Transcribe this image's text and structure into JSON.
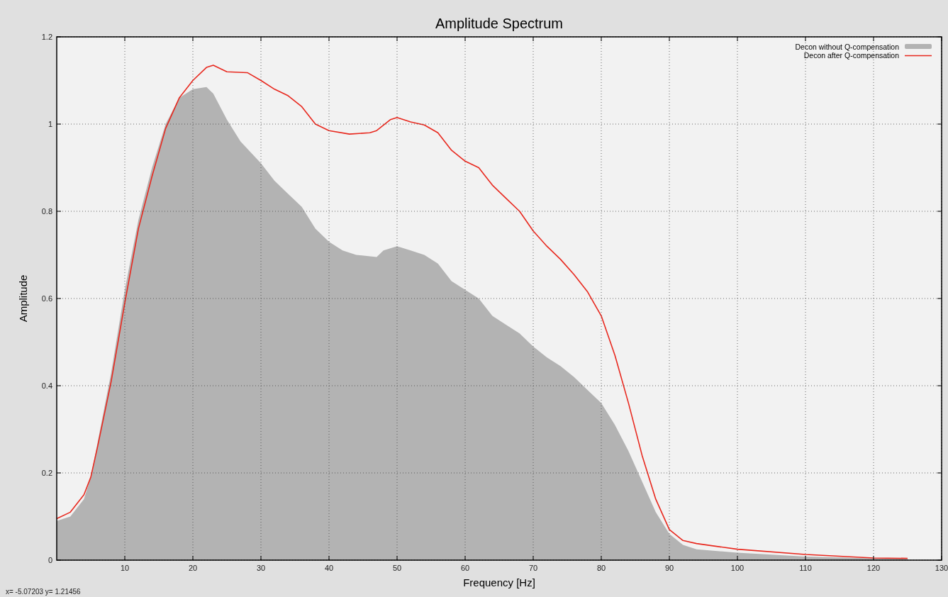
{
  "chart_data": {
    "type": "line",
    "title": "Amplitude Spectrum",
    "xlabel": "Frequency [Hz]",
    "ylabel": "Amplitude",
    "xlim": [
      0,
      130
    ],
    "xticks": [
      10,
      20,
      30,
      40,
      50,
      60,
      70,
      80,
      90,
      100,
      110,
      120,
      130
    ],
    "ylim": [
      0,
      1.2
    ],
    "yticks": [
      0,
      0.2,
      0.4,
      0.6,
      0.8,
      1,
      1.2
    ],
    "grid": true,
    "legend": "top right",
    "annotations": [
      "x= -5.07203 y= 1.21456"
    ],
    "series": [
      {
        "name": "Decon without Q-compensation",
        "type": "area",
        "color": "#b3b3b3",
        "x": [
          0,
          2,
          4,
          5,
          6,
          8,
          10,
          12,
          14,
          16,
          18,
          20,
          22,
          23,
          25,
          27,
          30,
          32,
          34,
          36,
          38,
          40,
          42,
          44,
          47,
          48,
          50,
          52,
          54,
          56,
          58,
          60,
          62,
          64,
          66,
          68,
          70,
          72,
          74,
          76,
          78,
          80,
          82,
          84,
          86,
          88,
          90,
          92,
          94,
          100,
          110,
          120,
          125
        ],
        "values": [
          0.09,
          0.1,
          0.14,
          0.19,
          0.27,
          0.43,
          0.62,
          0.78,
          0.9,
          1.0,
          1.06,
          1.08,
          1.085,
          1.07,
          1.01,
          0.96,
          0.91,
          0.87,
          0.84,
          0.81,
          0.76,
          0.73,
          0.71,
          0.7,
          0.695,
          0.71,
          0.72,
          0.71,
          0.7,
          0.68,
          0.64,
          0.62,
          0.6,
          0.56,
          0.54,
          0.52,
          0.49,
          0.465,
          0.445,
          0.42,
          0.39,
          0.36,
          0.31,
          0.25,
          0.18,
          0.11,
          0.06,
          0.035,
          0.025,
          0.017,
          0.008,
          0.004,
          0.003
        ]
      },
      {
        "name": "Decon after Q-compensation",
        "color": "#e8281e",
        "x": [
          0,
          2,
          4,
          5,
          6,
          8,
          10,
          12,
          14,
          16,
          18,
          20,
          22,
          23,
          25,
          28,
          30,
          32,
          34,
          36,
          38,
          40,
          43,
          46,
          47,
          49,
          50,
          52,
          54,
          56,
          58,
          60,
          62,
          64,
          66,
          68,
          70,
          72,
          74,
          76,
          78,
          80,
          82,
          84,
          86,
          88,
          90,
          92,
          94,
          100,
          110,
          120,
          125
        ],
        "values": [
          0.095,
          0.11,
          0.15,
          0.19,
          0.26,
          0.41,
          0.59,
          0.76,
          0.88,
          0.99,
          1.06,
          1.1,
          1.13,
          1.135,
          1.12,
          1.118,
          1.1,
          1.08,
          1.065,
          1.04,
          1.0,
          0.985,
          0.977,
          0.98,
          0.985,
          1.01,
          1.015,
          1.005,
          0.998,
          0.98,
          0.94,
          0.915,
          0.9,
          0.86,
          0.83,
          0.8,
          0.755,
          0.72,
          0.69,
          0.655,
          0.615,
          0.56,
          0.47,
          0.36,
          0.24,
          0.14,
          0.07,
          0.045,
          0.038,
          0.025,
          0.013,
          0.005,
          0.004
        ]
      }
    ]
  }
}
